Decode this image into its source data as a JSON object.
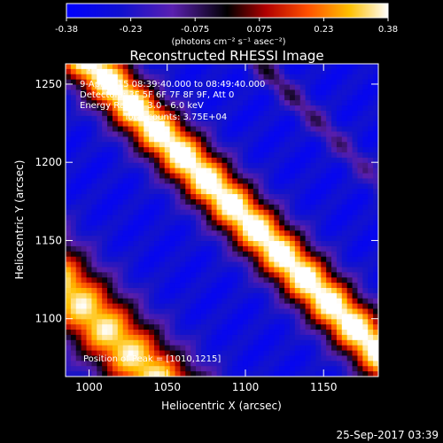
{
  "colorbar": {
    "ticks": [
      "-0.38",
      "-0.23",
      "-0.075",
      "0.075",
      "0.23",
      "0.38"
    ],
    "unit_label": "(photons cm⁻² s⁻¹ asec⁻²)",
    "range": [
      -0.38,
      0.38
    ],
    "colormap": [
      "#0000ff",
      "#2020c0",
      "#5020a0",
      "#000000",
      "#a00000",
      "#ff5000",
      "#ffc000",
      "#ffffff"
    ]
  },
  "chart_data": {
    "type": "heatmap",
    "title": "Reconstructed RHESSI Image",
    "xlabel": "Heliocentric X (arcsec)",
    "ylabel": "Heliocentric Y (arcsec)",
    "xlim": [
      985,
      1185
    ],
    "ylim": [
      1063,
      1263
    ],
    "x_ticks": [
      1000,
      1050,
      1100,
      1150
    ],
    "y_ticks": [
      1100,
      1150,
      1200,
      1250
    ],
    "peak_position": [
      1010,
      1215
    ],
    "value_range": [
      -0.38,
      0.38
    ]
  },
  "annotations": {
    "time_range": "9-Apr-2015 08:39:40.000 to 08:49:40.000",
    "detectors": "Detectors: 3F 5F 6F 7F 8F 9F, Att 0",
    "energy_range": "Energy Range: 3.0 - 6.0 keV",
    "total_counts": "Total counts: 3.75E+04",
    "peak_label": "Position of Peak = [1010,1215]"
  },
  "footer": {
    "date": "25-Sep-2017 03:39"
  }
}
